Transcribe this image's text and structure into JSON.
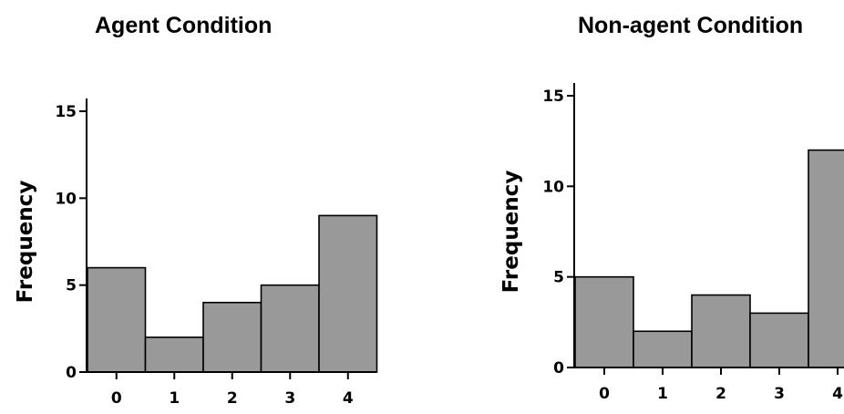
{
  "chart_data": [
    {
      "type": "bar",
      "title": "Agent Condition",
      "xlabel": "",
      "ylabel": "Frequency",
      "categories": [
        "0",
        "1",
        "2",
        "3",
        "4"
      ],
      "values": [
        6,
        2,
        4,
        5,
        9
      ],
      "ylim": [
        0,
        15
      ],
      "yticks": [
        "0",
        "5",
        "10",
        "15"
      ],
      "bar_color": "#999999",
      "grid": false
    },
    {
      "type": "bar",
      "title": "Non-agent Condition",
      "xlabel": "",
      "ylabel": "Frequency",
      "categories": [
        "0",
        "1",
        "2",
        "3",
        "4"
      ],
      "values": [
        5,
        2,
        4,
        3,
        12
      ],
      "ylim": [
        0,
        15
      ],
      "yticks": [
        "0",
        "5",
        "10",
        "15"
      ],
      "bar_color": "#999999",
      "grid": false
    }
  ]
}
